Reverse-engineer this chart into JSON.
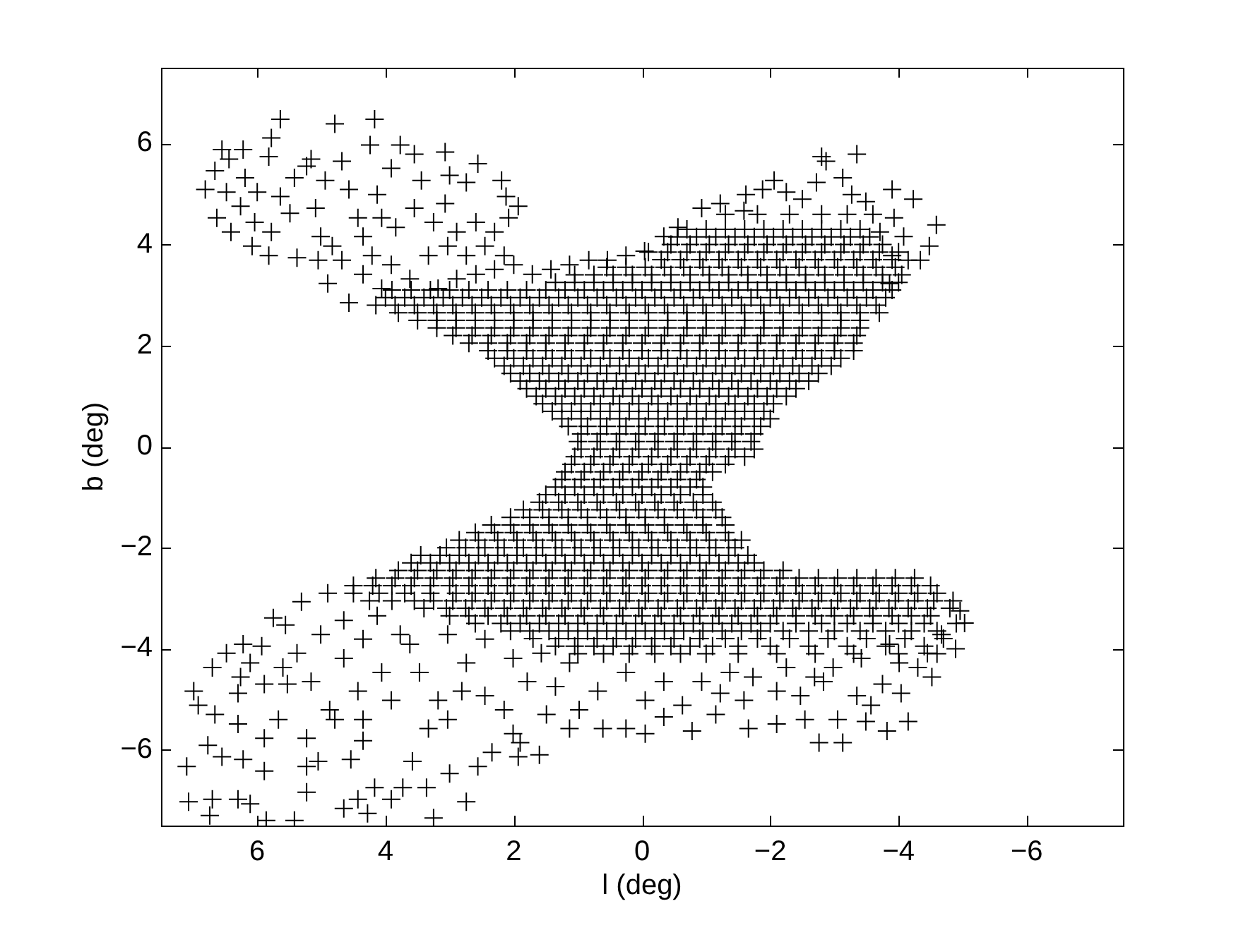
{
  "chart_data": {
    "type": "scatter",
    "xlabel": "l (deg)",
    "ylabel": "b (deg)",
    "marker": "cross",
    "color": "#000000",
    "xlim": [
      7.5,
      -7.5
    ],
    "ylim": [
      -7.5,
      7.5
    ],
    "xticks": [
      6,
      4,
      2,
      0,
      {
        "value": -2,
        "label": "−2"
      },
      {
        "value": -4,
        "label": "−4"
      },
      {
        "value": -6,
        "label": "−6"
      }
    ],
    "yticks": [
      {
        "value": -6,
        "label": "−6"
      },
      {
        "value": -4,
        "label": "−4"
      },
      {
        "value": -2,
        "label": "−2"
      },
      0,
      2,
      4,
      6
    ],
    "x": [
      5.64,
      4.79,
      4.17,
      5.78,
      6.55,
      6.22,
      4.24,
      6.66,
      6.44,
      5.82,
      5.16,
      4.68,
      3.77,
      3.55,
      3.07,
      2.56,
      6.81,
      6.48,
      6.19,
      6.0,
      5.64,
      5.42,
      5.23,
      4.94,
      4.57,
      4.13,
      3.91,
      3.44,
      3.0,
      2.74,
      2.19,
      2.12,
      1.93,
      6.63,
      6.26,
      6.41,
      6.04,
      5.78,
      6.08,
      5.82,
      5.38,
      5.49,
      5.09,
      5.01,
      4.83,
      5.05,
      4.68,
      4.9,
      4.57,
      4.43,
      4.35,
      4.06,
      3.84,
      3.55,
      3.25,
      3.07,
      2.89,
      2.59,
      2.3,
      2.08,
      4.21,
      3.91,
      4.35,
      4.06,
      3.62,
      3.33,
      3.03,
      2.74,
      2.45,
      2.15,
      3.18,
      2.89,
      2.59,
      2.3,
      2.0,
      1.71,
      1.42,
      1.13,
      0.83,
      0.54,
      0.25,
      -0.04,
      -2.8,
      -3.35,
      -2.87,
      -3.13,
      -2.72,
      -2.06,
      -1.88,
      -2.25,
      -3.9,
      -4.23,
      -4.59,
      -4.48,
      -4.34,
      -1.62,
      -1.22,
      -0.93,
      -0.56,
      -0.34,
      -3.27,
      -3.49,
      -2.5,
      -1.59,
      -3.93,
      -3.71,
      -4.08,
      -3.9,
      -4.15,
      -3.86,
      1.0,
      0.7,
      0.4,
      0.1,
      -0.2,
      -0.5,
      -0.8,
      -1.1,
      -1.4,
      -1.7,
      1.15,
      0.85,
      0.55,
      0.25,
      -0.05,
      -0.35,
      -0.65,
      -0.95,
      -1.25,
      -1.55,
      -1.85,
      1.4,
      1.1,
      0.8,
      0.5,
      0.2,
      -0.1,
      -0.4,
      -0.7,
      -1.0,
      -1.3,
      -1.6,
      -1.9,
      1.65,
      1.35,
      1.05,
      0.75,
      0.45,
      0.15,
      -0.15,
      -0.45,
      -0.75,
      -1.05,
      -1.35,
      -1.65,
      -1.95,
      -2.25,
      1.9,
      1.6,
      1.3,
      1.0,
      0.7,
      0.4,
      0.1,
      -0.2,
      -0.5,
      -0.8,
      -1.1,
      -1.4,
      -1.7,
      -2.0,
      -2.3,
      -2.6,
      2.15,
      1.85,
      1.55,
      1.25,
      0.95,
      0.65,
      0.35,
      0.05,
      -0.25,
      -0.55,
      -0.85,
      -1.15,
      -1.45,
      -1.75,
      -2.05,
      -2.35,
      -2.65,
      -2.95,
      2.4,
      2.1,
      1.8,
      1.5,
      1.2,
      0.9,
      0.6,
      0.3,
      0,
      -0.3,
      -0.6,
      -0.9,
      -1.2,
      -1.5,
      -1.8,
      -2.1,
      -2.4,
      -2.7,
      -3.0,
      -3.3,
      2.95,
      2.65,
      2.35,
      2.05,
      1.75,
      1.45,
      1.15,
      0.85,
      0.55,
      0.25,
      -0.05,
      -0.35,
      -0.65,
      -0.95,
      -1.25,
      -1.55,
      -1.85,
      -2.15,
      -2.45,
      -2.75,
      -3.05,
      -3.35,
      3.5,
      3.2,
      2.9,
      2.6,
      2.3,
      2.0,
      1.7,
      1.4,
      1.1,
      0.8,
      0.5,
      0.2,
      -0.1,
      -0.4,
      -0.7,
      -1.0,
      -1.3,
      -1.6,
      -1.9,
      -2.2,
      -2.5,
      -2.8,
      -3.1,
      -3.4,
      4.15,
      3.85,
      3.55,
      3.25,
      2.95,
      2.65,
      2.35,
      2.05,
      1.75,
      1.45,
      1.15,
      0.85,
      0.55,
      0.25,
      -0.05,
      -0.35,
      -0.65,
      -0.95,
      -1.25,
      -1.55,
      -1.85,
      -2.15,
      -2.45,
      -2.75,
      -3.05,
      -3.35,
      -3.65,
      3.9,
      3.6,
      3.3,
      3.0,
      2.7,
      2.4,
      2.1,
      1.8,
      1.5,
      1.2,
      0.9,
      0.6,
      0.3,
      0,
      -0.3,
      -0.6,
      -0.9,
      -1.2,
      -1.5,
      -1.8,
      -2.1,
      -2.4,
      -2.7,
      -3.0,
      -3.3,
      -3.6,
      -3.9,
      1.05,
      0.75,
      0.45,
      0.15,
      -0.15,
      -0.45,
      -0.75,
      -1.05,
      -1.35,
      -1.65,
      -1.95,
      -2.25,
      -2.55,
      -2.85,
      -3.15,
      -3.45,
      -3.75,
      -4.05,
      -0.3,
      -0.6,
      -0.9,
      -1.2,
      -1.5,
      -1.8,
      -2.1,
      -2.4,
      -2.7,
      -3.0,
      -3.3,
      -3.6,
      -3.9,
      -0.45,
      -0.75,
      -1.05,
      -1.35,
      -1.65,
      -1.95,
      -2.25,
      -2.55,
      -2.85,
      -3.15,
      -3.45,
      -3.75,
      -0.7,
      -1.0,
      -1.3,
      -1.6,
      -1.9,
      -2.2,
      -2.5,
      -2.8,
      -3.1,
      -3.4,
      -1.3,
      -1.8,
      -2.3,
      -2.8,
      -3.2,
      -3.6,
      1.05,
      0.75,
      0.45,
      0.15,
      -0.15,
      -0.45,
      -0.75,
      -1.05,
      -1.35,
      -1.6,
      1.2,
      0.9,
      0.6,
      0.3,
      0,
      -0.3,
      -0.6,
      -0.9,
      -1.1,
      1.35,
      1.05,
      0.75,
      0.45,
      0.15,
      -0.15,
      -0.45,
      -0.75,
      -0.95,
      1.6,
      1.3,
      1.0,
      0.7,
      0.4,
      0.1,
      -0.2,
      -0.5,
      -0.8,
      -1.1,
      2.05,
      1.75,
      1.45,
      1.15,
      0.85,
      0.55,
      0.25,
      -0.05,
      -0.35,
      -0.65,
      -0.95,
      -1.25,
      2.6,
      2.3,
      2.0,
      1.7,
      1.4,
      1.1,
      0.8,
      0.5,
      0.2,
      -0.1,
      -0.4,
      -0.7,
      -1.0,
      -1.3,
      3.05,
      2.75,
      2.45,
      2.15,
      1.85,
      1.55,
      1.25,
      0.95,
      0.65,
      0.35,
      0.05,
      -0.25,
      -0.55,
      -0.85,
      -1.15,
      -1.45,
      3.6,
      3.3,
      3.0,
      2.7,
      2.4,
      2.1,
      1.8,
      1.5,
      1.2,
      0.9,
      0.6,
      0.3,
      0,
      -0.3,
      -0.6,
      -0.9,
      -1.2,
      -1.5,
      -1.75,
      4.15,
      3.85,
      3.55,
      3.25,
      2.95,
      2.65,
      2.35,
      2.05,
      1.75,
      1.45,
      1.15,
      0.85,
      0.55,
      0.25,
      -0.05,
      -0.35,
      -0.65,
      -0.95,
      -1.25,
      -1.55,
      -1.85,
      -2.15,
      -2.45,
      -2.75,
      -3.05,
      -3.35,
      -3.65,
      -3.95,
      -4.25,
      4.9,
      4.5,
      4.1,
      3.7,
      3.3,
      2.9,
      2.6,
      2.3,
      2.0,
      1.7,
      1.4,
      1.1,
      0.8,
      0.5,
      0.2,
      -0.1,
      -0.4,
      -0.7,
      -1.0,
      -1.3,
      -1.6,
      -1.9,
      -2.2,
      -2.5,
      -2.8,
      -3.1,
      -3.4,
      -3.7,
      -4.0,
      -4.3,
      -4.6,
      3.4,
      3.05,
      2.75,
      2.45,
      2.15,
      1.85,
      1.55,
      1.25,
      0.95,
      0.65,
      0.35,
      0.05,
      -0.25,
      -0.55,
      -0.85,
      -1.15,
      -1.45,
      -1.75,
      -2.05,
      -2.35,
      -2.65,
      -2.95,
      -3.25,
      -3.55,
      -3.85,
      -4.15,
      -4.45,
      -4.8,
      2.6,
      2.2,
      1.9,
      1.6,
      1.3,
      1.0,
      0.7,
      0.4,
      0.1,
      -0.2,
      -0.5,
      -0.8,
      -1.1,
      -1.4,
      -1.7,
      -2.0,
      -2.4,
      -2.8,
      -3.2,
      -3.6,
      -4.0,
      -4.4,
      -4.9,
      1.7,
      1.3,
      1.0,
      0.7,
      0.4,
      0.1,
      -0.2,
      -0.5,
      -0.9,
      -1.3,
      -1.8,
      -2.3,
      -2.9,
      -3.5,
      -4.1,
      -4.7,
      1.0,
      0.6,
      0.2,
      -0.2,
      -0.6,
      -1.0,
      -1.5,
      -2.1,
      -2.7,
      -3.3,
      -4.0,
      -4.6,
      5.75,
      5.56,
      5.31,
      6.22,
      6.48,
      5.93,
      6.11,
      6.7,
      6.99,
      6.26,
      6.3,
      5.89,
      5.6,
      5.53,
      5.38,
      5.01,
      5.16,
      6.92,
      6.66,
      6.3,
      5.67,
      6.77,
      6.55,
      6.22,
      5.89,
      7.1,
      5.89,
      7.07,
      6.7,
      6.3,
      6.11,
      6.74,
      5.86,
      5.42,
      5.23,
      5.23,
      5.23,
      5.05,
      4.87,
      4.54,
      4.65,
      4.43,
      4.35,
      4.17,
      4.28,
      3.91,
      3.73,
      3.58,
      3.36,
      3.25,
      3.33,
      3.0,
      2.74,
      2.56,
      2.34,
      1.93,
      1.9,
      1.6,
      4.79,
      4.35,
      3.91,
      4.43,
      4.06,
      4.65,
      4.35,
      4.65,
      4.13,
      3.62,
      3.47,
      3.18,
      3.03,
      2.81,
      2.74,
      2.45,
      2.15,
      2.01,
      1.49,
      1.13,
      0.98,
      0.61,
      0.25,
      0.69,
      1.79,
      1.35,
      3.03,
      2.45,
      2.01,
      1.57,
      1.13,
      0.25,
      3.77,
      -2.76,
      -3.13,
      -3.82,
      -4.15,
      -3.49,
      -3.05,
      -2.54,
      -2.1,
      -1.66,
      -0.78,
      -0.05,
      -1.15,
      -0.34,
      -3.57,
      -4.04,
      -3.75,
      -4.52,
      -4.3,
      -3.35,
      -2.83,
      -2.47,
      -2.1,
      -1.59,
      -1.22,
      -0.63,
      -4.89,
      -5.03,
      -4.96,
      -4.67,
      -4.45,
      -4.01,
      -3.86,
      -3.42,
      -2.98,
      -2.69,
      -2.25,
      -1.73,
      -1.37,
      -0.93,
      -0.34,
      -0.05,
      0.95,
      0.65,
      0.35,
      0.05,
      -0.25,
      -0.55,
      -0.85,
      -1.15,
      -1.45,
      -1.75,
      1.25,
      0.95,
      0.65,
      0.35,
      0.05,
      -0.25,
      -0.55,
      -0.85,
      -1.15,
      -1.45,
      -1.75,
      -2.0,
      1.55,
      1.25,
      0.95,
      0.65,
      0.35,
      0.05,
      -0.25,
      -0.55,
      -0.85,
      -1.15,
      -1.45,
      -1.75,
      -2.05,
      1.8,
      1.5,
      1.2,
      0.9,
      0.6,
      0.3,
      0,
      -0.3,
      -0.6,
      -0.9,
      -1.2,
      -1.5,
      -1.8,
      -2.1,
      -2.4,
      2.05,
      1.75,
      1.45,
      1.15,
      0.85,
      0.55,
      0.25,
      -0.05,
      -0.35,
      -0.65,
      -0.95,
      -1.25,
      -1.55,
      -1.85,
      -2.15,
      -2.45,
      -2.75,
      2.3,
      2.0,
      1.7,
      1.4,
      1.1,
      0.8,
      0.5,
      0.2,
      -0.1,
      -0.4,
      -0.7,
      -1.0,
      -1.3,
      -1.6,
      -1.9,
      -2.2,
      -2.5,
      -2.8,
      -3.1,
      2.7,
      2.4,
      2.1,
      1.8,
      1.5,
      1.2,
      0.9,
      0.6,
      0.3,
      0,
      -0.3,
      -0.6,
      -0.9,
      -1.2,
      -1.5,
      -1.8,
      -2.1,
      -2.4,
      -2.7,
      -3.0,
      -3.3,
      3.2,
      2.9,
      2.6,
      2.3,
      2.0,
      1.7,
      1.4,
      1.1,
      0.8,
      0.5,
      0.2,
      -0.1,
      -0.4,
      -0.7,
      -1.0,
      -1.3,
      -1.6,
      -1.9,
      -2.2,
      -2.5,
      -2.8,
      -3.1,
      -3.4,
      3.8,
      3.5,
      3.2,
      2.9,
      2.6,
      2.3,
      2.0,
      1.7,
      1.4,
      1.1,
      0.8,
      0.5,
      0.2,
      -0.1,
      -0.4,
      -0.7,
      -1.0,
      -1.3,
      -1.6,
      -1.9,
      -2.2,
      -2.5,
      -2.8,
      -3.1,
      -3.4,
      -3.7,
      4.0,
      3.7,
      3.4,
      3.1,
      2.8,
      2.5,
      2.2,
      1.9,
      1.6,
      1.3,
      1.0,
      0.7,
      0.4,
      0.1,
      -0.2,
      -0.5,
      -0.8,
      -1.1,
      -1.4,
      -1.7,
      -2.0,
      -2.3,
      -2.6,
      -2.9,
      -3.2,
      -3.5,
      -3.8,
      1.35,
      1.05,
      0.75,
      0.45,
      0.15,
      -0.15,
      -0.45,
      -0.75,
      -1.05,
      -1.35,
      -1.65,
      -1.95,
      -2.25,
      -2.55,
      -2.85,
      -3.15,
      -3.45,
      -3.75,
      -4.0,
      0.55,
      0.25,
      -0.05,
      -0.35,
      -0.65,
      -0.95,
      -1.25,
      -1.55,
      -1.85,
      -2.15,
      -2.45,
      -2.75,
      -3.05,
      -3.35,
      -3.65,
      -3.95,
      -0.1,
      -0.4,
      -0.7,
      -1.0,
      -1.3,
      -1.6,
      -1.9,
      -2.2,
      -2.5,
      -2.8,
      -3.1,
      -3.4,
      -3.7,
      -4.0,
      -0.55,
      -0.85,
      -1.15,
      -1.45,
      -1.75,
      -2.05,
      -2.35,
      -2.65,
      -2.95,
      -3.25,
      -3.55,
      0.95,
      0.65,
      0.35,
      0.05,
      -0.25,
      -0.55,
      -0.85,
      -1.15,
      -1.45,
      -1.75,
      1.1,
      0.8,
      0.5,
      0.2,
      -0.1,
      -0.4,
      -0.7,
      -1.0,
      -1.3,
      1.25,
      0.95,
      0.65,
      0.35,
      0.05,
      -0.25,
      -0.55,
      -0.85,
      1.5,
      1.2,
      0.9,
      0.6,
      0.3,
      0,
      -0.3,
      -0.6,
      -0.95,
      1.85,
      1.55,
      1.25,
      0.95,
      0.65,
      0.35,
      0.05,
      -0.25,
      -0.55,
      -0.85,
      -1.15,
      2.35,
      2.05,
      1.75,
      1.45,
      1.15,
      0.85,
      0.55,
      0.25,
      -0.05,
      -0.35,
      -0.65,
      -0.95,
      -1.3,
      2.85,
      2.55,
      2.25,
      1.95,
      1.65,
      1.35,
      1.05,
      0.75,
      0.45,
      0.15,
      -0.15,
      -0.45,
      -0.75,
      -1.05,
      -1.35,
      -1.55,
      3.45,
      3.15,
      2.85,
      2.55,
      2.25,
      1.95,
      1.65,
      1.35,
      1.05,
      0.75,
      0.45,
      0.15,
      -0.15,
      -0.45,
      -0.75,
      -1.05,
      -1.35,
      -1.65,
      3.8,
      3.5,
      3.2,
      2.9,
      2.6,
      2.3,
      2.0,
      1.7,
      1.4,
      1.1,
      0.8,
      0.5,
      0.2,
      -0.1,
      -0.4,
      -0.7,
      -1.0,
      -1.3,
      -1.6,
      -1.9,
      -2.2,
      4.5,
      4.2,
      3.9,
      3.6,
      3.3,
      3.0,
      2.7,
      2.4,
      2.1,
      1.8,
      1.5,
      1.2,
      0.9,
      0.6,
      0.3,
      0,
      -0.3,
      -0.6,
      -0.9,
      -1.2,
      -1.5,
      -1.8,
      -2.1,
      -2.4,
      -2.7,
      -3.0,
      -3.3,
      -3.6,
      -3.9,
      -4.2,
      -4.5,
      4.25,
      3.9,
      3.55,
      3.25,
      2.95,
      2.65,
      2.35,
      2.05,
      1.75,
      1.45,
      1.15,
      0.85,
      0.55,
      0.25,
      -0.05,
      -0.35,
      -0.65,
      -0.95,
      -1.25,
      -1.55,
      -1.85,
      -2.15,
      -2.45,
      -2.75,
      -3.05,
      -3.35,
      -3.65,
      -3.95,
      -4.25,
      -4.55,
      -4.85,
      3.0,
      2.7,
      2.4,
      2.1,
      1.8,
      1.5,
      1.2,
      0.9,
      0.6,
      0.3,
      0,
      -0.3,
      -0.6,
      -0.9,
      -1.2,
      -1.5,
      -1.8,
      -2.1,
      -2.4,
      -2.7,
      -3.0,
      -3.3,
      -3.6,
      -3.9,
      -4.2,
      -4.5,
      2.05,
      1.75,
      1.45,
      1.15,
      0.85,
      0.55,
      0.25,
      -0.05,
      -0.35,
      -0.65,
      -0.95,
      -1.25,
      -1.55,
      -1.85,
      -2.2,
      -2.6,
      -3.0,
      -3.4,
      -3.8,
      -4.2,
      -4.6,
      1.35,
      1.05,
      0.75,
      0.45,
      0.15,
      -0.15,
      -0.45,
      -0.75,
      -1.1,
      -1.5,
      -2.0,
      -2.6,
      -3.2,
      -3.8,
      -4.4
    ],
    "values": [
      6.48,
      6.39,
      6.48,
      6.11,
      5.88,
      5.88,
      5.97,
      5.46,
      5.69,
      5.74,
      5.69,
      5.65,
      5.97,
      5.79,
      5.83,
      5.6,
      5.09,
      5.04,
      5.32,
      5.04,
      4.95,
      5.32,
      5.55,
      5.27,
      5.09,
      4.99,
      5.51,
      5.27,
      5.37,
      5.23,
      5.27,
      4.95,
      4.76,
      4.53,
      4.76,
      4.25,
      4.44,
      4.25,
      3.97,
      3.78,
      3.74,
      4.62,
      4.72,
      4.16,
      3.97,
      3.69,
      3.69,
      3.23,
      2.85,
      4.53,
      4.16,
      4.53,
      4.34,
      4.72,
      4.44,
      4.81,
      4.25,
      4.44,
      4.25,
      4.53,
      3.78,
      3.6,
      3.41,
      3.13,
      3.32,
      3.78,
      3.97,
      3.78,
      3.97,
      3.78,
      3.13,
      3.32,
      3.41,
      3.51,
      3.6,
      3.41,
      3.51,
      3.6,
      3.69,
      3.69,
      3.78,
      3.87,
      5.74,
      5.79,
      5.65,
      5.32,
      5.23,
      5.27,
      5.09,
      5.04,
      5.09,
      4.9,
      4.39,
      3.97,
      3.69,
      4.99,
      4.81,
      4.72,
      4.34,
      4.16,
      4.99,
      4.85,
      4.9,
      4.67,
      4.53,
      4.25,
      4.16,
      3.78,
      3.69,
      3.23,
      0.1,
      0.1,
      0.1,
      0.1,
      0.1,
      0.1,
      0.1,
      0.1,
      0.1,
      0.1,
      0.4,
      0.4,
      0.4,
      0.4,
      0.4,
      0.4,
      0.4,
      0.4,
      0.4,
      0.4,
      0.4,
      0.7,
      0.7,
      0.7,
      0.7,
      0.7,
      0.7,
      0.7,
      0.7,
      0.7,
      0.7,
      0.7,
      0.7,
      1,
      1,
      1,
      1,
      1,
      1,
      1,
      1,
      1,
      1,
      1,
      1,
      1,
      1,
      1.3,
      1.3,
      1.3,
      1.3,
      1.3,
      1.3,
      1.3,
      1.3,
      1.3,
      1.3,
      1.3,
      1.3,
      1.3,
      1.3,
      1.3,
      1.3,
      1.6,
      1.6,
      1.6,
      1.6,
      1.6,
      1.6,
      1.6,
      1.6,
      1.6,
      1.6,
      1.6,
      1.6,
      1.6,
      1.6,
      1.6,
      1.6,
      1.6,
      1.6,
      1.9,
      1.9,
      1.9,
      1.9,
      1.9,
      1.9,
      1.9,
      1.9,
      1.9,
      1.9,
      1.9,
      1.9,
      1.9,
      1.9,
      1.9,
      1.9,
      1.9,
      1.9,
      1.9,
      1.9,
      2.2,
      2.2,
      2.2,
      2.2,
      2.2,
      2.2,
      2.2,
      2.2,
      2.2,
      2.2,
      2.2,
      2.2,
      2.2,
      2.2,
      2.2,
      2.2,
      2.2,
      2.2,
      2.2,
      2.2,
      2.2,
      2.2,
      2.5,
      2.5,
      2.5,
      2.5,
      2.5,
      2.5,
      2.5,
      2.5,
      2.5,
      2.5,
      2.5,
      2.5,
      2.5,
      2.5,
      2.5,
      2.5,
      2.5,
      2.5,
      2.5,
      2.5,
      2.5,
      2.5,
      2.5,
      2.5,
      2.8,
      2.8,
      2.8,
      2.8,
      2.8,
      2.8,
      2.8,
      2.8,
      2.8,
      2.8,
      2.8,
      2.8,
      2.8,
      2.8,
      2.8,
      2.8,
      2.8,
      2.8,
      2.8,
      2.8,
      2.8,
      2.8,
      2.8,
      2.8,
      2.8,
      2.8,
      2.8,
      3.1,
      3.1,
      3.1,
      3.1,
      3.1,
      3.1,
      3.1,
      3.1,
      3.1,
      3.1,
      3.1,
      3.1,
      3.1,
      3.1,
      3.1,
      3.1,
      3.1,
      3.1,
      3.1,
      3.1,
      3.1,
      3.1,
      3.1,
      3.1,
      3.1,
      3.1,
      3.1,
      3.4,
      3.4,
      3.4,
      3.4,
      3.4,
      3.4,
      3.4,
      3.4,
      3.4,
      3.4,
      3.4,
      3.4,
      3.4,
      3.4,
      3.4,
      3.4,
      3.4,
      3.4,
      3.7,
      3.7,
      3.7,
      3.7,
      3.7,
      3.7,
      3.7,
      3.7,
      3.7,
      3.7,
      3.7,
      3.7,
      3.7,
      4,
      4,
      4,
      4,
      4,
      4,
      4,
      4,
      4,
      4,
      4,
      4,
      4.3,
      4.3,
      4.3,
      4.3,
      4.3,
      4.3,
      4.3,
      4.3,
      4.3,
      4.3,
      4.6,
      4.6,
      4.6,
      4.6,
      4.6,
      4.6,
      -0.2,
      -0.2,
      -0.2,
      -0.2,
      -0.2,
      -0.2,
      -0.2,
      -0.2,
      -0.2,
      -0.2,
      -0.5,
      -0.5,
      -0.5,
      -0.5,
      -0.5,
      -0.5,
      -0.5,
      -0.5,
      -0.5,
      -0.8,
      -0.8,
      -0.8,
      -0.8,
      -0.8,
      -0.8,
      -0.8,
      -0.8,
      -0.8,
      -1.1,
      -1.1,
      -1.1,
      -1.1,
      -1.1,
      -1.1,
      -1.1,
      -1.1,
      -1.1,
      -1.1,
      -1.4,
      -1.4,
      -1.4,
      -1.4,
      -1.4,
      -1.4,
      -1.4,
      -1.4,
      -1.4,
      -1.4,
      -1.4,
      -1.4,
      -1.7,
      -1.7,
      -1.7,
      -1.7,
      -1.7,
      -1.7,
      -1.7,
      -1.7,
      -1.7,
      -1.7,
      -1.7,
      -1.7,
      -1.7,
      -1.7,
      -2,
      -2,
      -2,
      -2,
      -2,
      -2,
      -2,
      -2,
      -2,
      -2,
      -2,
      -2,
      -2,
      -2,
      -2,
      -2,
      -2.3,
      -2.3,
      -2.3,
      -2.3,
      -2.3,
      -2.3,
      -2.3,
      -2.3,
      -2.3,
      -2.3,
      -2.3,
      -2.3,
      -2.3,
      -2.3,
      -2.3,
      -2.3,
      -2.3,
      -2.3,
      -2.3,
      -2.6,
      -2.6,
      -2.6,
      -2.6,
      -2.6,
      -2.6,
      -2.6,
      -2.6,
      -2.6,
      -2.6,
      -2.6,
      -2.6,
      -2.6,
      -2.6,
      -2.6,
      -2.6,
      -2.6,
      -2.6,
      -2.6,
      -2.6,
      -2.6,
      -2.6,
      -2.6,
      -2.6,
      -2.6,
      -2.6,
      -2.6,
      -2.6,
      -2.6,
      -2.9,
      -2.9,
      -2.9,
      -2.9,
      -2.9,
      -2.9,
      -2.9,
      -2.9,
      -2.9,
      -2.9,
      -2.9,
      -2.9,
      -2.9,
      -2.9,
      -2.9,
      -2.9,
      -2.9,
      -2.9,
      -2.9,
      -2.9,
      -2.9,
      -2.9,
      -2.9,
      -2.9,
      -2.9,
      -2.9,
      -2.9,
      -2.9,
      -2.9,
      -2.9,
      -2.9,
      -3.2,
      -3.2,
      -3.2,
      -3.2,
      -3.2,
      -3.2,
      -3.2,
      -3.2,
      -3.2,
      -3.2,
      -3.2,
      -3.2,
      -3.2,
      -3.2,
      -3.2,
      -3.2,
      -3.2,
      -3.2,
      -3.2,
      -3.2,
      -3.2,
      -3.2,
      -3.2,
      -3.2,
      -3.2,
      -3.2,
      -3.2,
      -3.2,
      -3.5,
      -3.5,
      -3.5,
      -3.5,
      -3.5,
      -3.5,
      -3.5,
      -3.5,
      -3.5,
      -3.5,
      -3.5,
      -3.5,
      -3.5,
      -3.5,
      -3.5,
      -3.5,
      -3.5,
      -3.5,
      -3.5,
      -3.5,
      -3.5,
      -3.5,
      -3.5,
      -3.8,
      -3.8,
      -3.8,
      -3.8,
      -3.8,
      -3.8,
      -3.8,
      -3.8,
      -3.8,
      -3.8,
      -3.8,
      -3.8,
      -3.8,
      -3.8,
      -3.8,
      -3.8,
      -4.1,
      -4.1,
      -4.1,
      -4.1,
      -4.1,
      -4.1,
      -4.1,
      -4.1,
      -4.1,
      -4.1,
      -4.1,
      -4.1,
      -3.39,
      -3.53,
      -3.07,
      -3.91,
      -4.09,
      -3.95,
      -4.28,
      -4.37,
      -4.84,
      -4.56,
      -4.88,
      -4.7,
      -4.37,
      -4.7,
      -4.09,
      -3.72,
      -4.65,
      -5.12,
      -5.3,
      -5.49,
      -5.4,
      -5.91,
      -6.14,
      -6.19,
      -5.77,
      -6.33,
      -6.42,
      -7.03,
      -6.98,
      -6.98,
      -7.07,
      -7.3,
      -7.4,
      -7.4,
      -6.84,
      -6.33,
      -5.77,
      -6.23,
      -5.21,
      -6.19,
      -7.16,
      -6.98,
      -5.82,
      -6.75,
      -7.26,
      -6.98,
      -6.75,
      -6.23,
      -6.75,
      -7.35,
      -5.58,
      -6.47,
      -7.03,
      -6.33,
      -6.05,
      -6.14,
      -5.86,
      -6.1,
      -5.4,
      -5.4,
      -5.02,
      -4.84,
      -4.47,
      -4.19,
      -3.81,
      -3.44,
      -3.35,
      -3.91,
      -4.47,
      -5.02,
      -5.4,
      -4.84,
      -4.28,
      -4.93,
      -5.21,
      -5.68,
      -5.3,
      -5.58,
      -5.21,
      -5.58,
      -5.58,
      -4.84,
      -4.65,
      -4.75,
      -3.72,
      -3.81,
      -4.19,
      -4.09,
      -4.28,
      -4.47,
      -3.72,
      -5.86,
      -5.86,
      -5.63,
      -5.44,
      -5.44,
      -5.4,
      -5.4,
      -5.49,
      -5.58,
      -5.63,
      -5.68,
      -5.3,
      -5.35,
      -5.12,
      -4.88,
      -4.7,
      -4.56,
      -4.37,
      -4.93,
      -4.65,
      -4.93,
      -4.84,
      -5.02,
      -4.88,
      -5.12,
      -4.0,
      -3.49,
      -3.25,
      -3.72,
      -4.09,
      -4.28,
      -3.91,
      -4.19,
      -4.37,
      -4.56,
      -4.37,
      -4.56,
      -4.47,
      -4.65,
      -4.65,
      -5.02,
      0.25,
      0.25,
      0.25,
      0.25,
      0.25,
      0.25,
      0.25,
      0.25,
      0.25,
      0.25,
      0.55,
      0.55,
      0.55,
      0.55,
      0.55,
      0.55,
      0.55,
      0.55,
      0.55,
      0.55,
      0.55,
      0.55,
      0.85,
      0.85,
      0.85,
      0.85,
      0.85,
      0.85,
      0.85,
      0.85,
      0.85,
      0.85,
      0.85,
      0.85,
      0.85,
      1.15,
      1.15,
      1.15,
      1.15,
      1.15,
      1.15,
      1.15,
      1.15,
      1.15,
      1.15,
      1.15,
      1.15,
      1.15,
      1.15,
      1.15,
      1.45,
      1.45,
      1.45,
      1.45,
      1.45,
      1.45,
      1.45,
      1.45,
      1.45,
      1.45,
      1.45,
      1.45,
      1.45,
      1.45,
      1.45,
      1.45,
      1.45,
      1.75,
      1.75,
      1.75,
      1.75,
      1.75,
      1.75,
      1.75,
      1.75,
      1.75,
      1.75,
      1.75,
      1.75,
      1.75,
      1.75,
      1.75,
      1.75,
      1.75,
      1.75,
      1.75,
      2.05,
      2.05,
      2.05,
      2.05,
      2.05,
      2.05,
      2.05,
      2.05,
      2.05,
      2.05,
      2.05,
      2.05,
      2.05,
      2.05,
      2.05,
      2.05,
      2.05,
      2.05,
      2.05,
      2.05,
      2.05,
      2.35,
      2.35,
      2.35,
      2.35,
      2.35,
      2.35,
      2.35,
      2.35,
      2.35,
      2.35,
      2.35,
      2.35,
      2.35,
      2.35,
      2.35,
      2.35,
      2.35,
      2.35,
      2.35,
      2.35,
      2.35,
      2.35,
      2.35,
      2.65,
      2.65,
      2.65,
      2.65,
      2.65,
      2.65,
      2.65,
      2.65,
      2.65,
      2.65,
      2.65,
      2.65,
      2.65,
      2.65,
      2.65,
      2.65,
      2.65,
      2.65,
      2.65,
      2.65,
      2.65,
      2.65,
      2.65,
      2.65,
      2.65,
      2.65,
      2.95,
      2.95,
      2.95,
      2.95,
      2.95,
      2.95,
      2.95,
      2.95,
      2.95,
      2.95,
      2.95,
      2.95,
      2.95,
      2.95,
      2.95,
      2.95,
      2.95,
      2.95,
      2.95,
      2.95,
      2.95,
      2.95,
      2.95,
      2.95,
      2.95,
      2.95,
      2.95,
      3.25,
      3.25,
      3.25,
      3.25,
      3.25,
      3.25,
      3.25,
      3.25,
      3.25,
      3.25,
      3.25,
      3.25,
      3.25,
      3.25,
      3.25,
      3.25,
      3.25,
      3.25,
      3.25,
      3.55,
      3.55,
      3.55,
      3.55,
      3.55,
      3.55,
      3.55,
      3.55,
      3.55,
      3.55,
      3.55,
      3.55,
      3.55,
      3.55,
      3.55,
      3.55,
      3.85,
      3.85,
      3.85,
      3.85,
      3.85,
      3.85,
      3.85,
      3.85,
      3.85,
      3.85,
      3.85,
      3.85,
      3.85,
      3.85,
      4.15,
      4.15,
      4.15,
      4.15,
      4.15,
      4.15,
      4.15,
      4.15,
      4.15,
      4.15,
      4.15,
      -0.05,
      -0.05,
      -0.05,
      -0.05,
      -0.05,
      -0.05,
      -0.05,
      -0.05,
      -0.05,
      -0.05,
      -0.35,
      -0.35,
      -0.35,
      -0.35,
      -0.35,
      -0.35,
      -0.35,
      -0.35,
      -0.35,
      -0.65,
      -0.65,
      -0.65,
      -0.65,
      -0.65,
      -0.65,
      -0.65,
      -0.65,
      -0.95,
      -0.95,
      -0.95,
      -0.95,
      -0.95,
      -0.95,
      -0.95,
      -0.95,
      -0.95,
      -1.25,
      -1.25,
      -1.25,
      -1.25,
      -1.25,
      -1.25,
      -1.25,
      -1.25,
      -1.25,
      -1.25,
      -1.25,
      -1.55,
      -1.55,
      -1.55,
      -1.55,
      -1.55,
      -1.55,
      -1.55,
      -1.55,
      -1.55,
      -1.55,
      -1.55,
      -1.55,
      -1.55,
      -1.85,
      -1.85,
      -1.85,
      -1.85,
      -1.85,
      -1.85,
      -1.85,
      -1.85,
      -1.85,
      -1.85,
      -1.85,
      -1.85,
      -1.85,
      -1.85,
      -1.85,
      -1.85,
      -2.15,
      -2.15,
      -2.15,
      -2.15,
      -2.15,
      -2.15,
      -2.15,
      -2.15,
      -2.15,
      -2.15,
      -2.15,
      -2.15,
      -2.15,
      -2.15,
      -2.15,
      -2.15,
      -2.15,
      -2.15,
      -2.45,
      -2.45,
      -2.45,
      -2.45,
      -2.45,
      -2.45,
      -2.45,
      -2.45,
      -2.45,
      -2.45,
      -2.45,
      -2.45,
      -2.45,
      -2.45,
      -2.45,
      -2.45,
      -2.45,
      -2.45,
      -2.45,
      -2.45,
      -2.45,
      -2.75,
      -2.75,
      -2.75,
      -2.75,
      -2.75,
      -2.75,
      -2.75,
      -2.75,
      -2.75,
      -2.75,
      -2.75,
      -2.75,
      -2.75,
      -2.75,
      -2.75,
      -2.75,
      -2.75,
      -2.75,
      -2.75,
      -2.75,
      -2.75,
      -2.75,
      -2.75,
      -2.75,
      -2.75,
      -2.75,
      -2.75,
      -2.75,
      -2.75,
      -2.75,
      -2.75,
      -3.05,
      -3.05,
      -3.05,
      -3.05,
      -3.05,
      -3.05,
      -3.05,
      -3.05,
      -3.05,
      -3.05,
      -3.05,
      -3.05,
      -3.05,
      -3.05,
      -3.05,
      -3.05,
      -3.05,
      -3.05,
      -3.05,
      -3.05,
      -3.05,
      -3.05,
      -3.05,
      -3.05,
      -3.05,
      -3.05,
      -3.05,
      -3.05,
      -3.05,
      -3.05,
      -3.05,
      -3.35,
      -3.35,
      -3.35,
      -3.35,
      -3.35,
      -3.35,
      -3.35,
      -3.35,
      -3.35,
      -3.35,
      -3.35,
      -3.35,
      -3.35,
      -3.35,
      -3.35,
      -3.35,
      -3.35,
      -3.35,
      -3.35,
      -3.35,
      -3.35,
      -3.35,
      -3.35,
      -3.35,
      -3.35,
      -3.35,
      -3.65,
      -3.65,
      -3.65,
      -3.65,
      -3.65,
      -3.65,
      -3.65,
      -3.65,
      -3.65,
      -3.65,
      -3.65,
      -3.65,
      -3.65,
      -3.65,
      -3.65,
      -3.65,
      -3.65,
      -3.65,
      -3.65,
      -3.65,
      -3.65,
      -3.95,
      -3.95,
      -3.95,
      -3.95,
      -3.95,
      -3.95,
      -3.95,
      -3.95,
      -3.95,
      -3.95,
      -3.95,
      -3.95,
      -3.95,
      -3.95,
      -3.95
    ]
  }
}
